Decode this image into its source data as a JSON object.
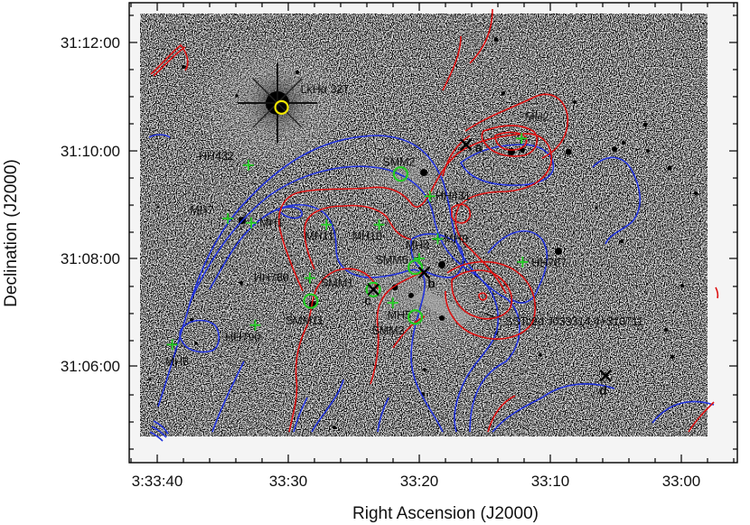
{
  "chart_data": {
    "type": "scatter",
    "title": "",
    "xlabel": "Right Ascension (J2000)",
    "ylabel": "Declination (J2000)",
    "x_ticks": [
      "3:33:40",
      "33:30",
      "33:20",
      "33:10",
      "33:00"
    ],
    "y_ticks": [
      "31:12:00",
      "31:10:00",
      "31:08:00",
      "31:06:00"
    ],
    "colors": {
      "blue_contour": "#2233dd",
      "red_contour": "#dd1111",
      "green_marker": "#22cc22",
      "yellow_circle": "#f2e600",
      "cross": "#000000"
    },
    "bright_star": {
      "name": "LkHα 327",
      "ra": "3:33:30.4",
      "dec": "31:10:50"
    },
    "hh_objects": [
      {
        "name": "HH432",
        "ra": "3:33:33.8",
        "dec": "31:09:45"
      },
      {
        "name": "MH7",
        "ra": "3:33:35.9",
        "dec": "31:08:45"
      },
      {
        "name": "MH1",
        "ra": "3:33:33.5",
        "dec": "31:08:40"
      },
      {
        "name": "MH11",
        "ra": "3:33:25.8",
        "dec": "31:08:38"
      },
      {
        "name": "MH10",
        "ra": "3:33:20.4",
        "dec": "31:08:38"
      },
      {
        "name": "HH789",
        "ra": "3:33:27.5",
        "dec": "31:07:38"
      },
      {
        "name": "HH790",
        "ra": "3:33:33.1",
        "dec": "31:06:45"
      },
      {
        "name": "MH8",
        "ra": "3:33:41.6",
        "dec": "31:06:23"
      },
      {
        "name": "MH2",
        "ra": "3:33:05.8",
        "dec": "31:10:15"
      },
      {
        "name": "HH431",
        "ra": "3:33:15.2",
        "dec": "31:09:10"
      },
      {
        "name": "MH4",
        "ra": "3:33:16.3",
        "dec": "31:08:00"
      },
      {
        "name": "MH3",
        "ra": "3:33:14.4",
        "dec": "31:08:22"
      },
      {
        "name": "HH787",
        "ra": "3:33:05.7",
        "dec": "31:07:56"
      },
      {
        "name": "MH5",
        "ra": "3:33:19.0",
        "dec": "31:07:10"
      }
    ],
    "submm_sources": [
      {
        "name": "SMM2",
        "ra": "3:33:18.2",
        "dec": "31:09:35"
      },
      {
        "name": "SMM6",
        "ra": "3:33:16.7",
        "dec": "31:07:50"
      },
      {
        "name": "SMM1",
        "ra": "3:33:21.0",
        "dec": "31:07:25"
      },
      {
        "name": "SMM11",
        "ra": "3:33:27.4",
        "dec": "31:07:12"
      },
      {
        "name": "SMM3",
        "ra": "3:33:16.7",
        "dec": "31:06:54"
      }
    ],
    "positions": [
      {
        "name": "a",
        "ra": "3:33:11.5",
        "dec": "31:10:08"
      },
      {
        "name": "b",
        "ra": "3:33:15.8",
        "dec": "31:07:44"
      },
      {
        "name": "c",
        "ra": "3:33:21.0",
        "dec": "31:07:25"
      },
      {
        "name": "d",
        "ra": "3:32:57.2",
        "dec": "31:05:48"
      }
    ],
    "extra_labels": [
      {
        "text": "SSTc2d J033314.4+310711"
      }
    ]
  }
}
